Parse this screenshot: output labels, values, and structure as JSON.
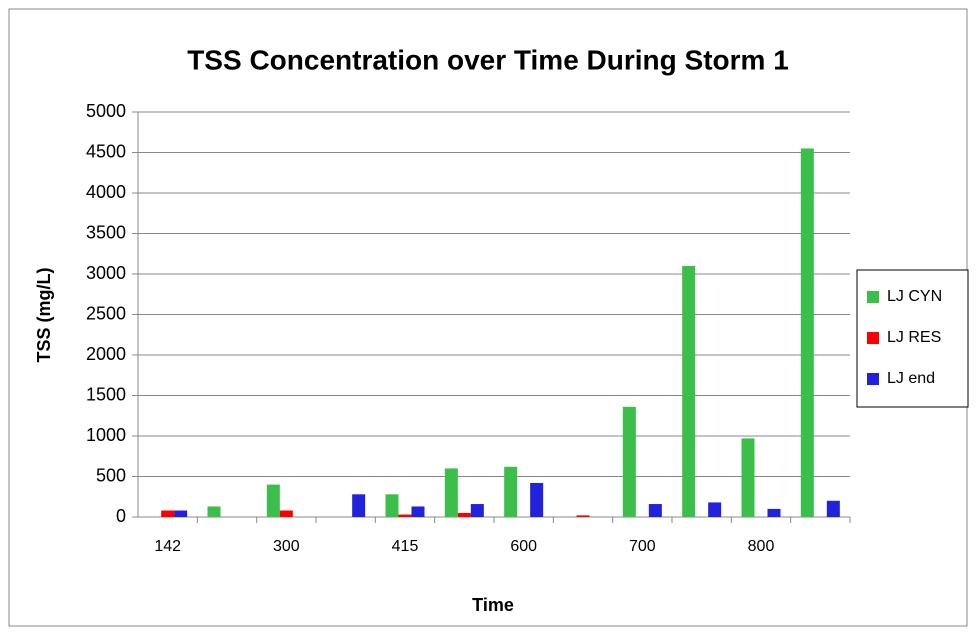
{
  "chart_data": {
    "type": "bar",
    "title": "TSS Concentration over Time During Storm 1",
    "x_label": "Time",
    "y_label": "TSS (mg/L)",
    "categories": [
      "142",
      null,
      "300",
      null,
      "415",
      null,
      "600",
      null,
      "700",
      null,
      "800",
      null
    ],
    "series": [
      {
        "name": "LJ CYN",
        "color": "#3cbf4a",
        "values": [
          null,
          130,
          400,
          null,
          280,
          600,
          620,
          null,
          1360,
          3100,
          970,
          4550
        ]
      },
      {
        "name": "LJ RES",
        "color": "#ff0000",
        "values": [
          80,
          null,
          80,
          null,
          30,
          50,
          null,
          20,
          null,
          null,
          null,
          null
        ]
      },
      {
        "name": "LJ end",
        "color": "#2222dd",
        "values": [
          80,
          null,
          null,
          280,
          130,
          160,
          420,
          null,
          160,
          180,
          100,
          200
        ]
      }
    ],
    "ylim": [
      0,
      5000
    ],
    "yticks": [
      0,
      500,
      1000,
      1500,
      2000,
      2500,
      3000,
      3500,
      4000,
      4500,
      5000
    ],
    "grid": true,
    "legend": "right"
  }
}
